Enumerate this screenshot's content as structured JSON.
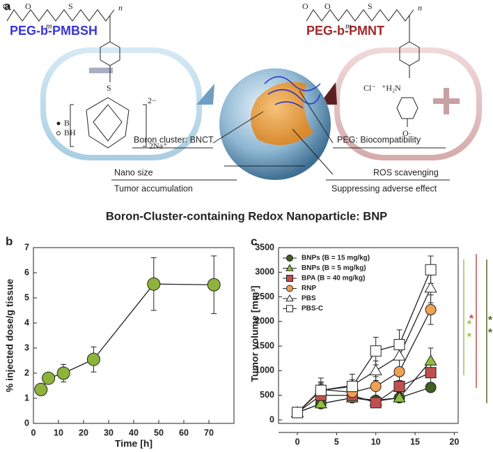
{
  "figure": {
    "panel": "a",
    "left_polymer": "PEG-b-PMBSH",
    "right_polymer": "PEG-b-PMNT",
    "left_chain": [
      "O",
      "O",
      "S",
      "m",
      "n",
      "S"
    ],
    "right_chain": [
      "O",
      "O",
      "S",
      "m",
      "n"
    ],
    "left_labels": [
      "B",
      "BH",
      "2−",
      "2Na⁺"
    ],
    "right_labels": [
      "Cl⁻",
      "⁺H₂N",
      "O·"
    ],
    "captions": [
      "Boron cluster: BNCT",
      "PEG: Biocompatibility",
      "Nano size",
      "ROS scavenging",
      "Tumor accumulation",
      "Suppressing adverse effect"
    ],
    "title": "Boron-Cluster-containing Redox Nanoparticle: BNP"
  },
  "chart_data": [
    {
      "type": "line",
      "panel": "b",
      "x_label": "Time [h]",
      "y_label": "% injected dose/g tissue",
      "x": [
        3,
        6,
        12,
        24,
        48,
        72
      ],
      "values": [
        1.35,
        1.8,
        2.0,
        2.55,
        5.55,
        5.52
      ],
      "errors": [
        0.12,
        0.15,
        0.35,
        0.5,
        1.05,
        1.15
      ],
      "color": "#8db33a",
      "marker": "circle",
      "xlim": [
        0,
        80
      ],
      "ylim": [
        0,
        7
      ],
      "xticks": [
        0,
        10,
        20,
        30,
        40,
        50,
        60,
        70
      ],
      "yticks": [
        0,
        1,
        2,
        3,
        4,
        5,
        6,
        7
      ]
    },
    {
      "type": "line",
      "panel": "c",
      "y_label": "Tumor volume [mm³]",
      "x": [
        0,
        3,
        7,
        10,
        13,
        17
      ],
      "series": [
        {
          "name": "BNPs (B = 15 mg/kg)",
          "color": "#3f5e22",
          "marker": "circle",
          "values": [
            150,
            330,
            450,
            400,
            450,
            660
          ]
        },
        {
          "name": "BNPs (B = 5 mg/kg)",
          "color": "#8fbf3f",
          "marker": "triangle",
          "values": [
            150,
            330,
            450,
            380,
            450,
            1200
          ],
          "errors": [
            60,
            60,
            80,
            80,
            80,
            260
          ]
        },
        {
          "name": "BPA (B = 40 mg/kg)",
          "color": "#c0504d",
          "marker": "square",
          "values": [
            150,
            500,
            500,
            350,
            680,
            960
          ],
          "errors": [
            60,
            100,
            80,
            60,
            120,
            200
          ]
        },
        {
          "name": "RNP",
          "color": "#f0a050",
          "marker": "circle",
          "values": [
            150,
            620,
            560,
            680,
            980,
            2240
          ],
          "errors": [
            60,
            150,
            100,
            200,
            250,
            300
          ]
        },
        {
          "name": "PBS",
          "color": "#ffffff",
          "marker": "triangle",
          "values": [
            150,
            600,
            700,
            1000,
            1300,
            2680
          ],
          "errors": [
            60,
            150,
            120,
            200,
            250,
            300
          ]
        },
        {
          "name": "PBS-C",
          "color": "#ffffff",
          "marker": "square",
          "values": [
            150,
            600,
            680,
            1400,
            1530,
            3050
          ],
          "errors": [
            60,
            250,
            250,
            280,
            300,
            280
          ]
        }
      ],
      "significance": [
        {
          "color": "#9cc24a",
          "stars": [
            "*",
            "*"
          ]
        },
        {
          "color": "#c0504d",
          "stars": [
            "*"
          ]
        },
        {
          "color": "#4d6b28",
          "stars": [
            "*",
            "*"
          ]
        }
      ],
      "xlim": [
        -2.4,
        20.5
      ],
      "ylim": [
        0,
        3500
      ],
      "xticks": [
        0,
        5,
        10,
        15,
        20
      ],
      "yticks": [
        0,
        500,
        1000,
        1500,
        2000,
        2500,
        3000,
        3500
      ]
    }
  ]
}
